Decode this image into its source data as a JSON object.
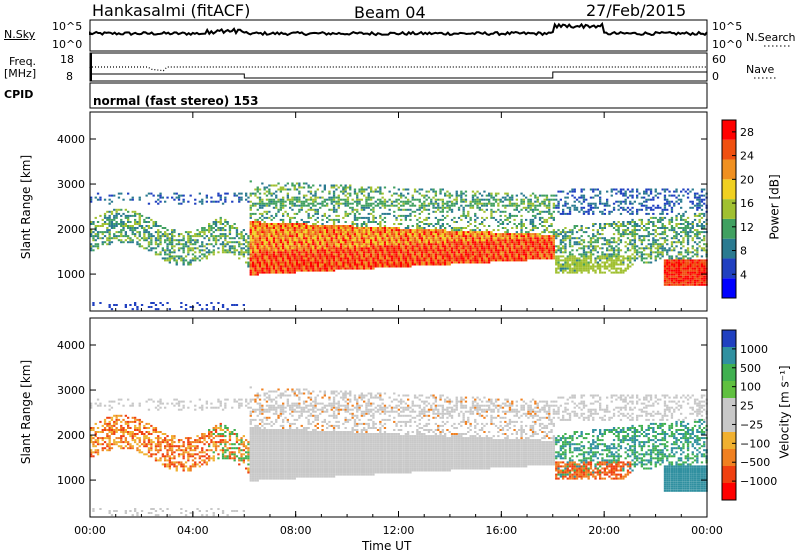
{
  "header": {
    "station": "Hankasalmi (fitACF)",
    "beam": "Beam 04",
    "date": "27/Feb/2015"
  },
  "strip": {
    "nsky_label": "N.Sky",
    "nsky_ticks": [
      "10^5",
      "10^0"
    ],
    "nsearch_label": "N.Search",
    "nsearch_ticks": [
      "10^5",
      "10^0"
    ],
    "freq_label": "Freq.",
    "freq_unit": "[MHz]",
    "freq_ticks": [
      "18",
      "8"
    ],
    "nave_label": "Nave",
    "nave_ticks": [
      "60",
      "0"
    ],
    "cpid_label": "CPID",
    "cpid_text": "normal (fast stereo) 153"
  },
  "chart_data": [
    {
      "type": "heatmap",
      "title": "",
      "ylabel": "Slant Range [km]",
      "xlabel": "Time UT",
      "x_ticks": [
        "00:00",
        "04:00",
        "08:00",
        "12:00",
        "16:00",
        "20:00",
        "00:00"
      ],
      "xlim_hours": [
        0,
        24
      ],
      "y_ticks": [
        1000,
        2000,
        3000,
        4000
      ],
      "ylim": [
        180,
        4600
      ],
      "colorbar": {
        "label": "Power [dB]",
        "ticks": [
          4,
          8,
          12,
          16,
          20,
          24,
          28
        ],
        "range": [
          0,
          30
        ]
      }
    },
    {
      "type": "heatmap",
      "title": "",
      "ylabel": "Slant Range [km]",
      "xlabel": "Time UT",
      "x_ticks": [
        "00:00",
        "04:00",
        "08:00",
        "12:00",
        "16:00",
        "20:00",
        "00:00"
      ],
      "xlim_hours": [
        0,
        24
      ],
      "y_ticks": [
        1000,
        2000,
        3000,
        4000
      ],
      "ylim": [
        180,
        4600
      ],
      "colorbar": {
        "label": "Velocity [m s⁻¹]",
        "ticks": [
          "1000",
          "500",
          "100",
          "25",
          "−25",
          "−100",
          "−500",
          "−1000"
        ]
      }
    }
  ],
  "colors": {
    "power": [
      "#0000ff",
      "#2040c0",
      "#2a7a90",
      "#40a060",
      "#a0c030",
      "#f0d020",
      "#f09020",
      "#f05010",
      "#ff0000"
    ],
    "velocity": [
      "#2040c0",
      "#3090a0",
      "#40b050",
      "#60c040",
      "#c8c8c8",
      "#c8c8c8",
      "#f0b030",
      "#f08020",
      "#f04010",
      "#ff0000"
    ]
  },
  "x_axis_title": "Time UT"
}
